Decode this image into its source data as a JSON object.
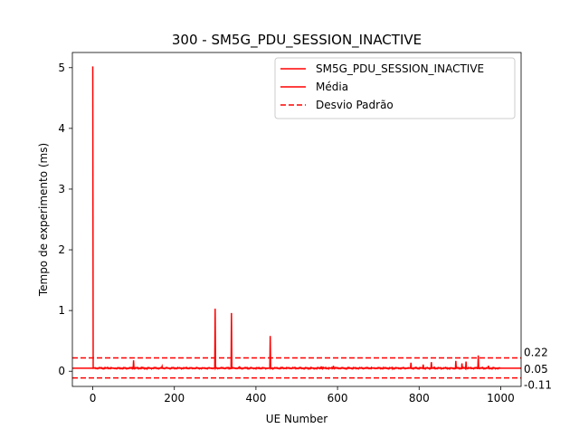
{
  "chart_data": {
    "type": "line",
    "title": "300 - SM5G_PDU_SESSION_INACTIVE",
    "xlabel": "UE Number",
    "ylabel": "Tempo de experimento (ms)",
    "xlim": [
      -50,
      1050
    ],
    "ylim": [
      -0.25,
      5.25
    ],
    "xticks": [
      0,
      200,
      400,
      600,
      800,
      1000
    ],
    "yticks": [
      0,
      1,
      2,
      3,
      4,
      5
    ],
    "grid": false,
    "legend_position": "top-right",
    "colors": {
      "series": "#ff0000",
      "axis": "#000000"
    },
    "series": [
      {
        "name": "SM5G_PDU_SESSION_INACTIVE",
        "color": "#ff0000",
        "style": "solid",
        "baseline": 0.05,
        "count": 1000,
        "spikes": [
          [
            0,
            5.02
          ],
          [
            1,
            0.05
          ],
          [
            100,
            0.18
          ],
          [
            101,
            0.05
          ],
          [
            170,
            0.08
          ],
          [
            171,
            0.05
          ],
          [
            300,
            1.03
          ],
          [
            301,
            0.05
          ],
          [
            340,
            0.96
          ],
          [
            341,
            0.05
          ],
          [
            360,
            0.08
          ],
          [
            361,
            0.05
          ],
          [
            435,
            0.58
          ],
          [
            436,
            0.05
          ],
          [
            560,
            0.08
          ],
          [
            561,
            0.05
          ],
          [
            590,
            0.09
          ],
          [
            591,
            0.05
          ],
          [
            780,
            0.14
          ],
          [
            781,
            0.05
          ],
          [
            810,
            0.11
          ],
          [
            811,
            0.05
          ],
          [
            830,
            0.15
          ],
          [
            831,
            0.05
          ],
          [
            890,
            0.17
          ],
          [
            891,
            0.05
          ],
          [
            905,
            0.13
          ],
          [
            906,
            0.05
          ],
          [
            915,
            0.16
          ],
          [
            916,
            0.05
          ],
          [
            945,
            0.26
          ],
          [
            946,
            0.05
          ],
          [
            970,
            0.09
          ],
          [
            971,
            0.05
          ]
        ]
      },
      {
        "name": "Média",
        "color": "#ff0000",
        "style": "solid",
        "value": 0.05
      },
      {
        "name": "Desvio Padrão",
        "color": "#ff0000",
        "style": "dashed",
        "values": [
          0.22,
          -0.11
        ]
      }
    ],
    "annotations": [
      {
        "text": "0.22",
        "y": 0.22
      },
      {
        "text": "0.05",
        "y": 0.05
      },
      {
        "text": "-0.11",
        "y": -0.11
      }
    ]
  }
}
